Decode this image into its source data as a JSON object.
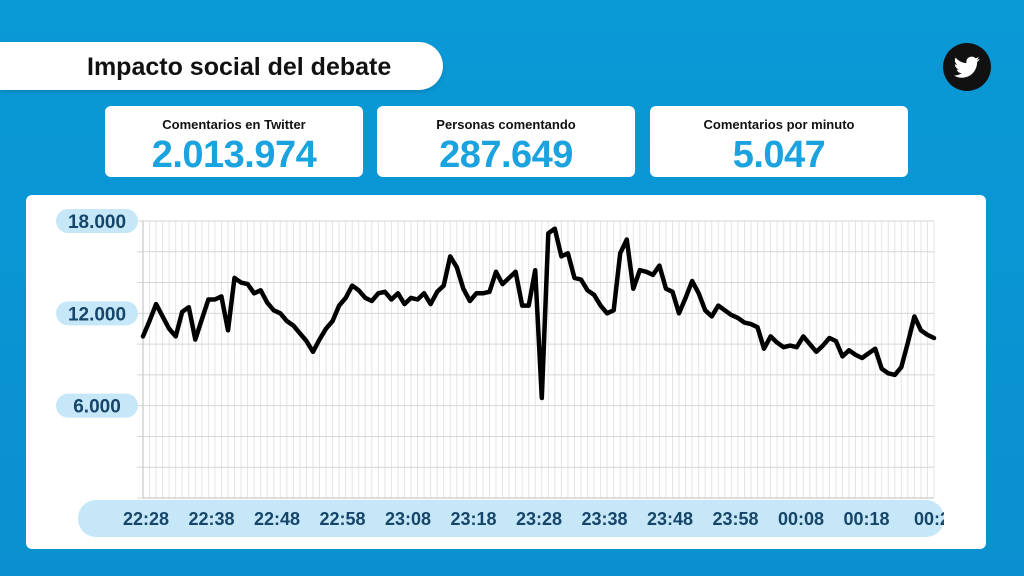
{
  "header": {
    "title": "Impacto social del debate"
  },
  "brand": {
    "icon": "twitter-bird-icon",
    "badge_color": "#111111",
    "accent": "#1aa3de",
    "background": "#0a9ad6"
  },
  "stats": [
    {
      "label": "Comentarios en Twitter",
      "value": "2.013.974"
    },
    {
      "label": "Personas comentando",
      "value": "287.649"
    },
    {
      "label": "Comentarios por minuto",
      "value": "5.047"
    }
  ],
  "chart_data": {
    "type": "line",
    "title": "",
    "xlabel": "",
    "ylabel": "",
    "ylim": [
      0,
      18000
    ],
    "y_ticks": [
      {
        "value": 18000,
        "label": "18.000"
      },
      {
        "value": 12000,
        "label": "12.000"
      },
      {
        "value": 6000,
        "label": "6.000"
      }
    ],
    "x_ticks": [
      "22:28",
      "22:38",
      "22:48",
      "22:58",
      "23:08",
      "23:18",
      "23:28",
      "23:38",
      "23:48",
      "23:58",
      "00:08",
      "00:18",
      "00:2"
    ],
    "grid": true,
    "line_color": "#000000",
    "series": [
      {
        "x": [
          0,
          1,
          2,
          3,
          4,
          5,
          6,
          7,
          8,
          9,
          10,
          11,
          12,
          13,
          14,
          15,
          16,
          17,
          18,
          19,
          20,
          21,
          22,
          23,
          24,
          25,
          26,
          27,
          28,
          29,
          30,
          31,
          32,
          33,
          34,
          35,
          36,
          37,
          38,
          39,
          40,
          41,
          42,
          43,
          44,
          45,
          46,
          47,
          48,
          49,
          50,
          51,
          52,
          53,
          54,
          55,
          56,
          57,
          58,
          59,
          60,
          61,
          62,
          63,
          64,
          65,
          66,
          67,
          68,
          69,
          70,
          71,
          72,
          73,
          74,
          75,
          76,
          77,
          78,
          79,
          80,
          81,
          82,
          83,
          84,
          85,
          86,
          87,
          88,
          89,
          90,
          91,
          92,
          93,
          94,
          95,
          96,
          97,
          98,
          99,
          100,
          101,
          102,
          103,
          104,
          105,
          106,
          107,
          108,
          109,
          110,
          111,
          112,
          113,
          114,
          115,
          116,
          117,
          118,
          119,
          120,
          121
        ],
        "values": [
          10500,
          11500,
          12600,
          11800,
          11000,
          10500,
          12100,
          12400,
          10300,
          11600,
          12900,
          12900,
          13100,
          10900,
          14300,
          14000,
          13900,
          13300,
          13500,
          12700,
          12200,
          12000,
          11500,
          11200,
          10700,
          10200,
          9500,
          10300,
          11000,
          11500,
          12500,
          13000,
          13800,
          13500,
          13000,
          12800,
          13300,
          13400,
          12900,
          13300,
          12600,
          13000,
          12900,
          13300,
          12600,
          13400,
          13800,
          15700,
          15000,
          13600,
          12800,
          13300,
          13300,
          13400,
          14700,
          13900,
          14300,
          14700,
          12500,
          12500,
          14800,
          6500,
          17200,
          17500,
          15700,
          15900,
          14300,
          14200,
          13500,
          13200,
          12500,
          12000,
          12200,
          15900,
          16800,
          13600,
          14800,
          14700,
          14500,
          15100,
          13600,
          13400,
          12000,
          13000,
          14100,
          13300,
          12200,
          11800,
          12500,
          12200,
          11900,
          11700,
          11400,
          11300,
          11100,
          9700,
          10500,
          10100,
          9800,
          9900,
          9800,
          10500,
          10000,
          9500,
          9900,
          10400,
          10200,
          9200,
          9600,
          9300,
          9100,
          9400,
          9700,
          8400,
          8100,
          8000,
          8500,
          10100,
          11800,
          10900,
          10600,
          10400
        ]
      }
    ]
  }
}
